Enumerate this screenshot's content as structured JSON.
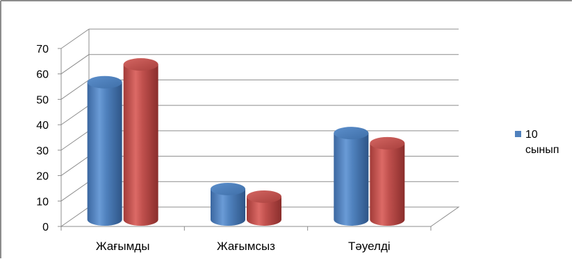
{
  "chart_data": {
    "type": "bar",
    "categories": [
      "Жағымды",
      "Жағымсыз",
      "Тәуелді"
    ],
    "series": [
      {
        "name": "10 сынып",
        "values": [
          54,
          12,
          34
        ],
        "color": "#4F81BD"
      },
      {
        "values": [
          61,
          9,
          30
        ],
        "color": "#C0504D"
      }
    ],
    "y_ticks": [
      "0",
      "10",
      "20",
      "30",
      "40",
      "50",
      "60",
      "70"
    ],
    "ylim": [
      0,
      70
    ],
    "grid": true,
    "legend": {
      "placement": "right",
      "lines": [
        "10",
        "сынып"
      ]
    },
    "style": "3d-cylinder"
  },
  "colors": {
    "border": "#8C8C8C",
    "gridline": "#8C8C8C",
    "series1": "#4F81BD",
    "series2": "#C0504D"
  }
}
